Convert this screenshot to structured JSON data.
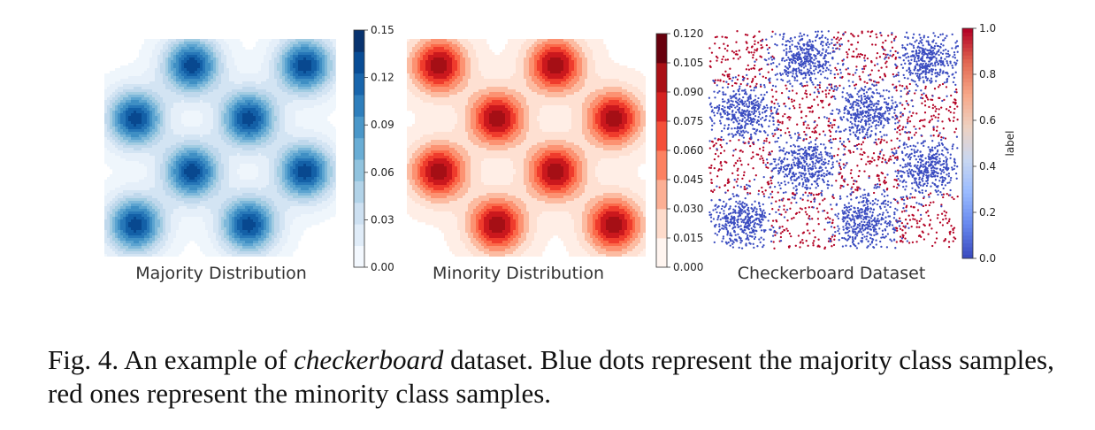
{
  "figure": {
    "panels": [
      {
        "title": "Majority Distribution",
        "colormap": "Blues",
        "colorbar": {
          "ticks": [
            "0.15",
            "0.12",
            "0.09",
            "0.06",
            "0.03",
            "0.00"
          ],
          "range": [
            0,
            0.165
          ],
          "label": ""
        },
        "chart_data": {
          "type": "heatmap",
          "title": "Majority Distribution",
          "description": "Gaussian mixture density contour plot, 8 blobs on a 4x4 checkerboard grid",
          "centers": [
            [
              1,
              3
            ],
            [
              3,
              3
            ],
            [
              0,
              2
            ],
            [
              2,
              2
            ],
            [
              1,
              1
            ],
            [
              3,
              1
            ],
            [
              0,
              0
            ],
            [
              2,
              0
            ]
          ],
          "zlim": [
            0,
            0.165
          ]
        }
      },
      {
        "title": "Minority Distribution",
        "colormap": "Reds",
        "colorbar": {
          "ticks": [
            "0.120",
            "0.105",
            "0.090",
            "0.075",
            "0.060",
            "0.045",
            "0.030",
            "0.015",
            "0.000"
          ],
          "range": [
            0,
            0.12
          ],
          "label": ""
        },
        "chart_data": {
          "type": "heatmap",
          "title": "Minority Distribution",
          "description": "Gaussian mixture density contour plot, 8 blobs on the complementary checkerboard cells",
          "centers": [
            [
              0,
              3
            ],
            [
              2,
              3
            ],
            [
              1,
              2
            ],
            [
              3,
              2
            ],
            [
              0,
              1
            ],
            [
              2,
              1
            ],
            [
              1,
              0
            ],
            [
              3,
              0
            ]
          ],
          "zlim": [
            0,
            0.12
          ]
        }
      },
      {
        "title": "Checkerboard Dataset",
        "colormap": "coolwarm",
        "colorbar": {
          "ticks": [
            "1.0",
            "0.8",
            "0.6",
            "0.4",
            "0.2",
            "0.0"
          ],
          "range": [
            0,
            1
          ],
          "label": "label"
        },
        "chart_data": {
          "type": "scatter",
          "title": "Checkerboard Dataset",
          "series": [
            {
              "label_value": 0,
              "color": "#3b4cc0",
              "centers": [
                [
                  1,
                  3
                ],
                [
                  3,
                  3
                ],
                [
                  0,
                  2
                ],
                [
                  2,
                  2
                ],
                [
                  1,
                  1
                ],
                [
                  3,
                  1
                ],
                [
                  0,
                  0
                ],
                [
                  2,
                  0
                ]
              ]
            },
            {
              "label_value": 1,
              "color": "#b40426",
              "centers": [
                [
                  0,
                  3
                ],
                [
                  2,
                  3
                ],
                [
                  1,
                  2
                ],
                [
                  3,
                  2
                ],
                [
                  0,
                  1
                ],
                [
                  2,
                  1
                ],
                [
                  1,
                  0
                ],
                [
                  3,
                  0
                ]
              ]
            }
          ],
          "colorbar_label": "label"
        }
      }
    ]
  },
  "caption": {
    "prefix": "Fig. 4.  An example of ",
    "italic": "checkerboard",
    "suffix": " dataset. Blue dots represent the majority class samples, red ones represent the minority class samples."
  }
}
